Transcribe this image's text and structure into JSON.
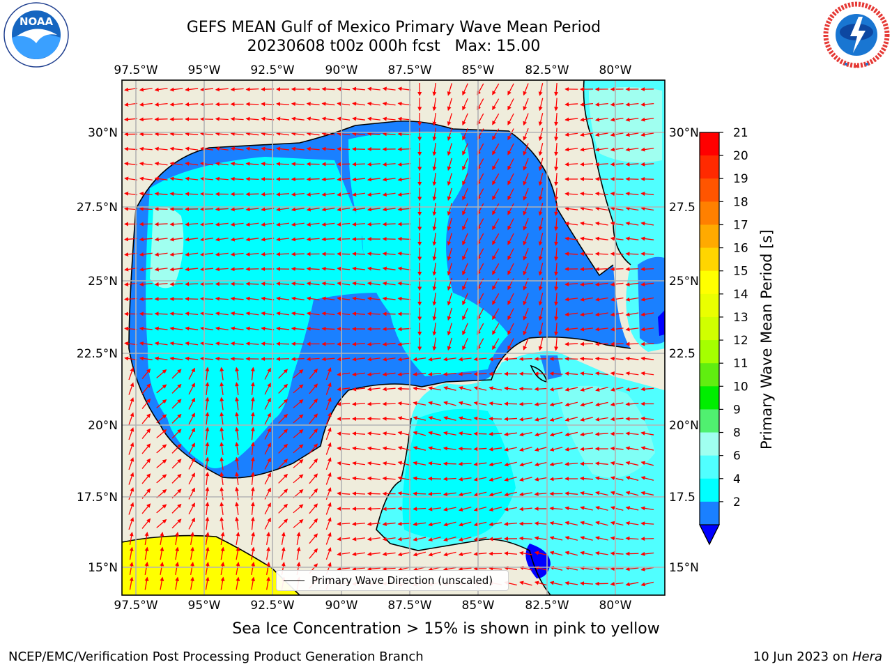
{
  "title": {
    "line1": "GEFS MEAN Gulf of Mexico Primary Wave Mean Period",
    "line2": "20230608 t00z 000h fcst   Max: 15.00"
  },
  "logos": {
    "left": {
      "icon": "noaa-logo-icon",
      "text": "NOAA"
    },
    "right": {
      "icon": "nws-logo-icon"
    }
  },
  "map": {
    "lon_ticks": [
      "97.5°W",
      "95°W",
      "92.5°W",
      "90°W",
      "87.5°W",
      "85°W",
      "82.5°W",
      "80°W"
    ],
    "lat_ticks_left": [
      "30°N",
      "27.5°N",
      "25°N",
      "22.5°N",
      "20°N",
      "17.5°N",
      "15°N"
    ],
    "lat_ticks_right": [
      "30°N",
      "27.5",
      "25°N",
      "22.5",
      "20°N",
      "17.5",
      "15°N"
    ],
    "land_color": "#efeddc",
    "arrow_color": "#ff0000"
  },
  "legend": {
    "label": "Primary Wave Direction (unscaled)"
  },
  "colorbar": {
    "label": "Primary Wave Mean Period [s]",
    "ticks": [
      "21",
      "20",
      "19",
      "18",
      "17",
      "16",
      "15",
      "14",
      "13",
      "12",
      "11",
      "10",
      "9",
      "8",
      "6",
      "4",
      "2"
    ],
    "colors": [
      "#ff0000",
      "#ff2a00",
      "#ff5500",
      "#ff8000",
      "#ffaa00",
      "#ffd500",
      "#ffff00",
      "#eaff00",
      "#d0ff00",
      "#a5ff00",
      "#60ee10",
      "#00ee00",
      "#50f070",
      "#a0fff0",
      "#50ffff",
      "#00ffff",
      "#1a80ff"
    ],
    "under_color": "#0000ff"
  },
  "caption": "Sea Ice Concentration > 15% is shown in pink to yellow",
  "footer": {
    "left": "NCEP/EMC/Verification Post Processing Product Generation Branch",
    "right_date": "10 Jun 2023 on ",
    "right_host": "Hera"
  }
}
